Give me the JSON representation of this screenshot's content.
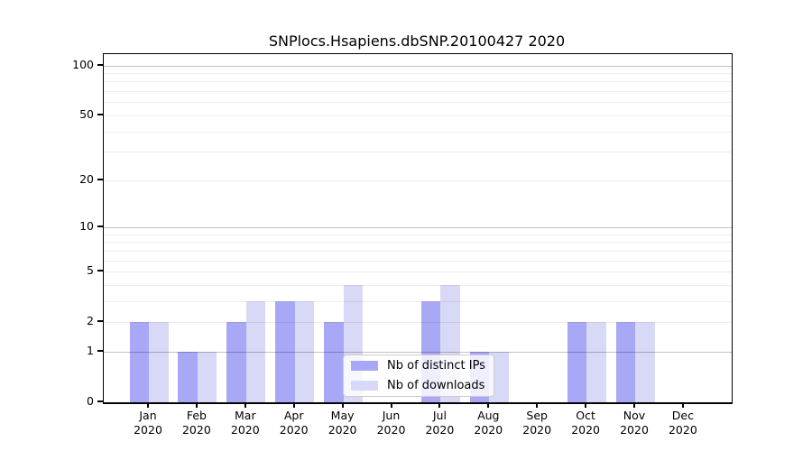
{
  "chart_data": {
    "type": "bar",
    "title": "SNPlocs.Hsapiens.dbSNP.20100427 2020",
    "xlabel": "",
    "ylabel": "",
    "categories": [
      "Jan 2020",
      "Feb 2020",
      "Mar 2020",
      "Apr 2020",
      "May 2020",
      "Jun 2020",
      "Jul 2020",
      "Aug 2020",
      "Sep 2020",
      "Oct 2020",
      "Nov 2020",
      "Dec 2020"
    ],
    "series": [
      {
        "name": "Nb of distinct IPs",
        "color": "#a8a8f7",
        "values": [
          2,
          1,
          2,
          3,
          2,
          0,
          3,
          1,
          0,
          2,
          2,
          0
        ]
      },
      {
        "name": "Nb of downloads",
        "color": "#d8d8f7",
        "values": [
          2,
          1,
          3,
          3,
          4,
          0,
          4,
          1,
          0,
          2,
          2,
          0
        ]
      }
    ],
    "y_axis": {
      "scale": "log1p",
      "tick_labels": [
        0,
        1,
        2,
        5,
        10,
        20,
        50,
        100
      ],
      "major_gridlines": [
        1,
        10,
        100
      ],
      "minor_gridlines": [
        2,
        3,
        4,
        5,
        6,
        7,
        8,
        9,
        20,
        30,
        40,
        50,
        60,
        70,
        80,
        90
      ],
      "ylim": [
        0,
        117
      ]
    },
    "legend": {
      "position": "inside-bottom-center",
      "entries": [
        "Nb of distinct IPs",
        "Nb of downloads"
      ]
    },
    "grid": "horizontal"
  },
  "colors": {
    "background": "#ffffff",
    "axis": "#000000",
    "major_grid": "#c4c4c4",
    "minor_grid": "#ededed",
    "distinct_ips": "#a8a8f7",
    "downloads": "#d8d8f7"
  }
}
